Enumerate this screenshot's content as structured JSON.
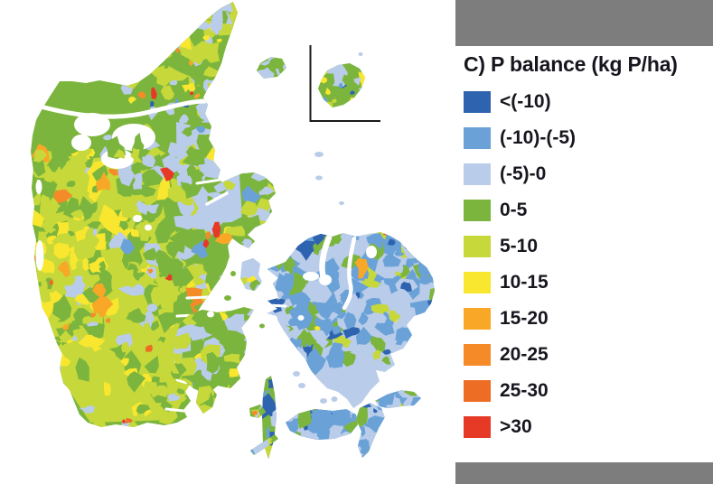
{
  "figure": {
    "title": "C) P balance (kg P/ha)",
    "legend": [
      {
        "label": "<(-10)",
        "color": "#2e63b0"
      },
      {
        "label": "(-10)-(-5)",
        "color": "#6aa2d8"
      },
      {
        "label": "(-5)-0",
        "color": "#b9cce9"
      },
      {
        "label": "0-5",
        "color": "#7cb53e"
      },
      {
        "label": "5-10",
        "color": "#c6d83a"
      },
      {
        "label": "10-15",
        "color": "#f8e72e"
      },
      {
        "label": "15-20",
        "color": "#f9a727"
      },
      {
        "label": "20-25",
        "color": "#f58b28"
      },
      {
        "label": "25-30",
        "color": "#ed6d24"
      },
      {
        "label": ">30",
        "color": "#e63a27"
      }
    ],
    "panel": {
      "bar_color": "#7d7d7d",
      "background": "#ffffff",
      "text_color": "#16161e"
    }
  },
  "map": {
    "background": "#ffffff",
    "sea_color": "#ffffff",
    "inset_line_color": "#1a1a1a",
    "regions": [
      "Jutland",
      "Funen",
      "Zealand",
      "Lolland",
      "Falster",
      "Moen",
      "Langeland",
      "Als",
      "Aeroe",
      "Taasinge",
      "Samsoe",
      "Laesoe",
      "Anholt",
      "Bornholm-inset"
    ]
  }
}
